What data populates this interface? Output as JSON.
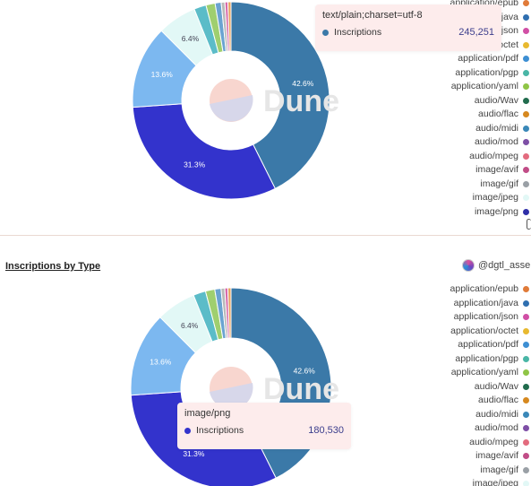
{
  "watermark": "Dune",
  "colors": {
    "png": "#3b79a8",
    "jpeg": "#3333cc",
    "gif": "#7cb8f0",
    "avif": "#e2f8f6",
    "mpeg": "#5bbcc8",
    "mod": "#9fcf6f",
    "midi": "#6aa3d1",
    "misc1": "#d86aa9",
    "misc2": "#b9b9b9",
    "misc3": "#e8a35e",
    "hole_blob_a": "#f8d6cf",
    "hole_blob_b": "#d7d7ea"
  },
  "legend_items": [
    {
      "label": "application/epub",
      "color": "#e07b39"
    },
    {
      "label": "application/java",
      "color": "#2f6fb0"
    },
    {
      "label": "application/json",
      "color": "#d14fa5"
    },
    {
      "label": "application/octet",
      "color": "#e8b92f"
    },
    {
      "label": "application/pdf",
      "color": "#3d8fd3"
    },
    {
      "label": "application/pgp",
      "color": "#49b6a6"
    },
    {
      "label": "application/yaml",
      "color": "#8fc546"
    },
    {
      "label": "audio/Wav",
      "color": "#216c4d"
    },
    {
      "label": "audio/flac",
      "color": "#d6881f"
    },
    {
      "label": "audio/midi",
      "color": "#3a88b8"
    },
    {
      "label": "audio/mod",
      "color": "#7e4fa6"
    },
    {
      "label": "audio/mpeg",
      "color": "#e36b7e"
    },
    {
      "label": "image/avif",
      "color": "#c14d87"
    },
    {
      "label": "image/gif",
      "color": "#9aa0a6"
    },
    {
      "label": "image/jpeg",
      "color": "#e2f8f6"
    },
    {
      "label": "image/png",
      "color": "#2f2fa8"
    }
  ],
  "panels": [
    {
      "tooltip": {
        "title": "text/plain;charset=utf-8",
        "series": "Inscriptions",
        "value": "245,251",
        "dot_color": "#3b79a8"
      }
    },
    {
      "title": "Inscriptions by Type",
      "author": "@dgtl_asse",
      "tooltip": {
        "title": "image/png",
        "series": "Inscriptions",
        "value": "180,530",
        "dot_color": "#3333cc"
      }
    }
  ],
  "chart_data": [
    {
      "type": "pie",
      "title": "",
      "series": [
        {
          "name": "Inscriptions"
        }
      ],
      "slices": [
        {
          "pct": 42.6,
          "label": "42.6%",
          "color": "#3b79a8"
        },
        {
          "pct": 31.3,
          "label": "31.3%",
          "color": "#3333cc"
        },
        {
          "pct": 13.6,
          "label": "13.6%",
          "color": "#7cb8f0"
        },
        {
          "pct": 6.4,
          "label": "6.4%",
          "color": "#e2f8f6"
        },
        {
          "pct": 2.0,
          "label": "",
          "color": "#5bbcc8"
        },
        {
          "pct": 1.5,
          "label": "",
          "color": "#9fcf6f"
        },
        {
          "pct": 1.0,
          "label": "",
          "color": "#6aa3d1"
        },
        {
          "pct": 0.6,
          "label": "",
          "color": "#b9b9b9"
        },
        {
          "pct": 0.5,
          "label": "",
          "color": "#d86aa9"
        },
        {
          "pct": 0.5,
          "label": "",
          "color": "#e8a35e"
        }
      ]
    },
    {
      "type": "pie",
      "title": "Inscriptions by Type",
      "series": [
        {
          "name": "Inscriptions"
        }
      ],
      "slices": [
        {
          "pct": 42.6,
          "label": "42.6%",
          "color": "#3b79a8"
        },
        {
          "pct": 31.3,
          "label": "31.3%",
          "color": "#3333cc"
        },
        {
          "pct": 13.6,
          "label": "13.6%",
          "color": "#7cb8f0"
        },
        {
          "pct": 6.4,
          "label": "6.4%",
          "color": "#e2f8f6"
        },
        {
          "pct": 2.0,
          "label": "",
          "color": "#5bbcc8"
        },
        {
          "pct": 1.5,
          "label": "",
          "color": "#9fcf6f"
        },
        {
          "pct": 1.0,
          "label": "",
          "color": "#6aa3d1"
        },
        {
          "pct": 0.6,
          "label": "",
          "color": "#b9b9b9"
        },
        {
          "pct": 0.5,
          "label": "",
          "color": "#d86aa9"
        },
        {
          "pct": 0.5,
          "label": "",
          "color": "#e8a35e"
        }
      ]
    }
  ]
}
